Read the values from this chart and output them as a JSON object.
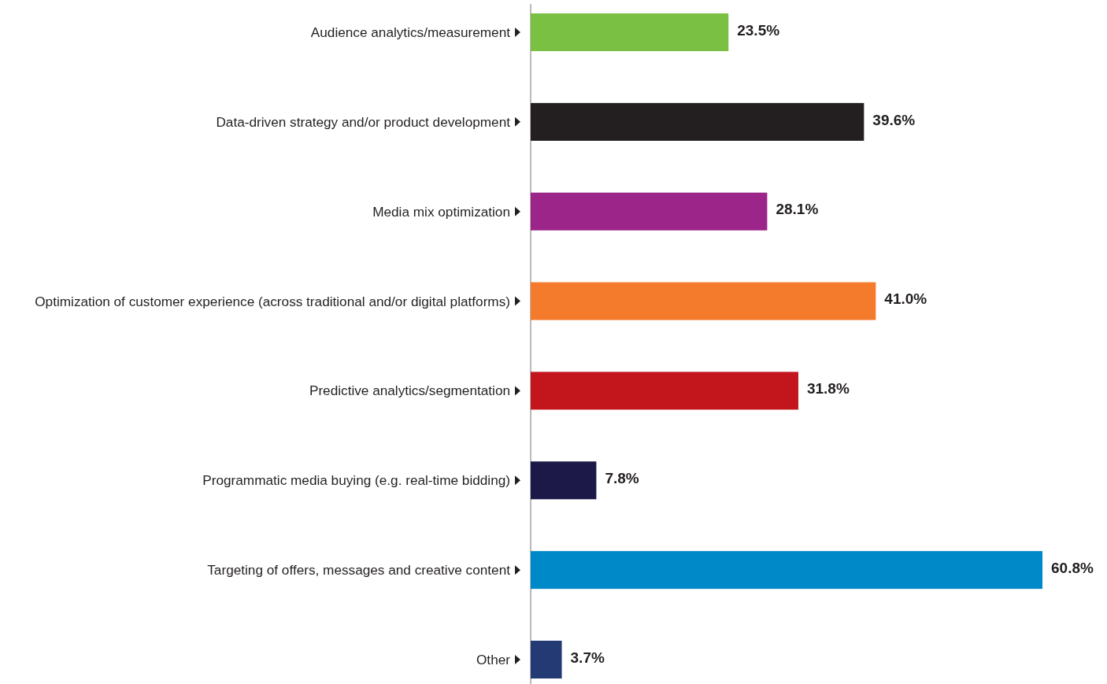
{
  "chart_data": {
    "type": "bar",
    "orientation": "horizontal",
    "categories": [
      "Audience analytics/measurement",
      "Data-driven strategy and/or product development",
      "Media mix optimization",
      "Optimization of customer experience (across traditional and/or digital platforms)",
      "Predictive analytics/segmentation",
      "Programmatic media buying (e.g. real-time bidding)",
      "Targeting of offers, messages and creative content",
      "Other"
    ],
    "values": [
      23.5,
      39.6,
      28.1,
      41.0,
      31.8,
      7.8,
      60.8,
      3.7
    ],
    "colors": [
      "#7ac143",
      "#231f20",
      "#9b2589",
      "#f47a2c",
      "#c3151c",
      "#1c1847",
      "#0089c9",
      "#233a75"
    ],
    "value_labels": [
      "23.5%",
      "39.6%",
      "28.1%",
      "41.0%",
      "31.8%",
      "7.8%",
      "60.8%",
      "3.7%"
    ],
    "data_labels": false
  }
}
